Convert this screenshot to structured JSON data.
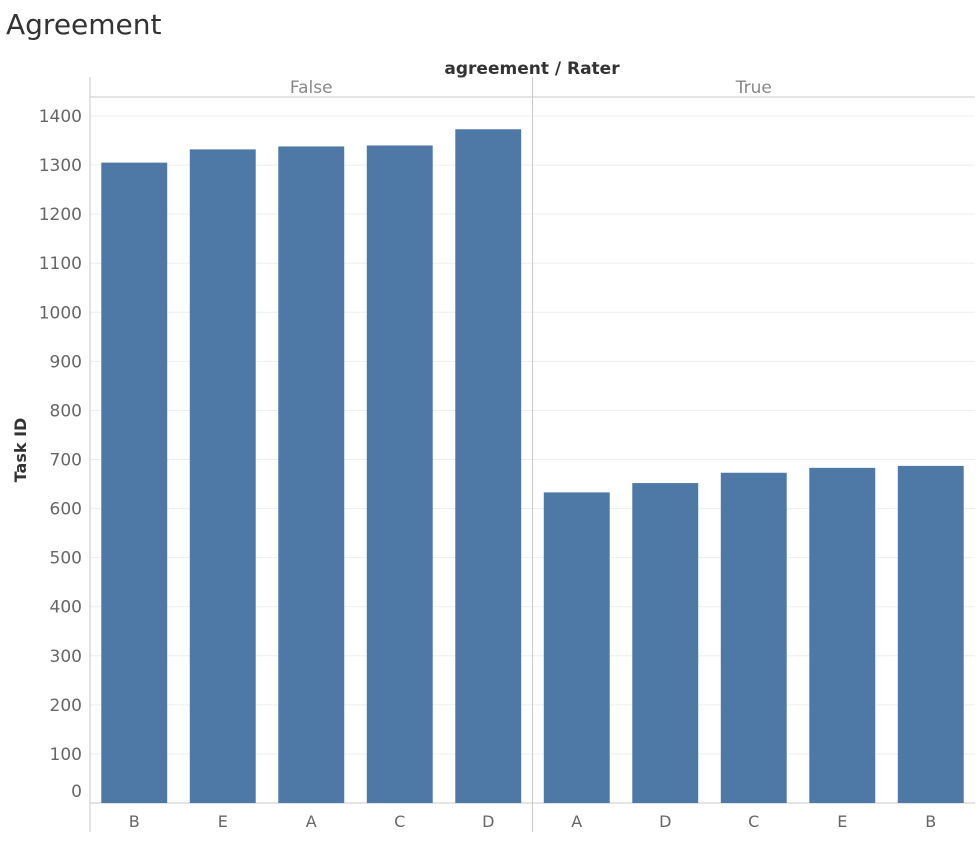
{
  "title": "Agreement",
  "chart_data": {
    "type": "bar",
    "title": "Agreement",
    "column_header": "agreement / Rater",
    "ylabel": "Task ID",
    "xlabel": "",
    "ylim": [
      0,
      1450
    ],
    "yticks": [
      0,
      100,
      200,
      300,
      400,
      500,
      600,
      700,
      800,
      900,
      1000,
      1100,
      1200,
      1300,
      1400
    ],
    "grid": true,
    "bar_color": "#4e79a7",
    "panels": [
      {
        "label": "False",
        "categories": [
          "B",
          "E",
          "A",
          "C",
          "D"
        ],
        "values": [
          1305,
          1332,
          1338,
          1340,
          1373
        ]
      },
      {
        "label": "True",
        "categories": [
          "A",
          "D",
          "C",
          "E",
          "B"
        ],
        "values": [
          633,
          652,
          673,
          683,
          687
        ]
      }
    ]
  }
}
